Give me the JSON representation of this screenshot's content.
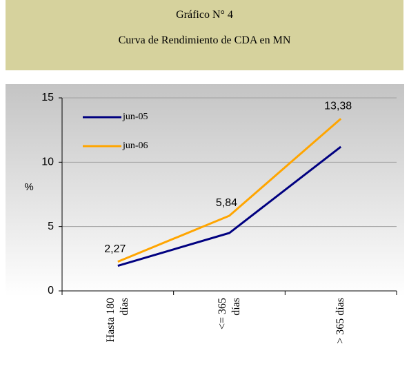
{
  "chart_data": {
    "type": "line",
    "title": "Gráfico N° 4",
    "subtitle": "Curva de Rendimiento de CDA en MN",
    "y_label": "%",
    "categories": [
      "Hasta 180\ndías",
      "<= 365\ndías",
      "> 365 días"
    ],
    "series": [
      {
        "name": "jun-05",
        "color": "#000080",
        "values": [
          1.95,
          4.5,
          11.2
        ]
      },
      {
        "name": "jun-06",
        "color": "#ffa500",
        "values": [
          2.27,
          5.84,
          13.38
        ],
        "value_labels": [
          "2,27",
          "5,84",
          "13,38"
        ]
      }
    ],
    "ylim": [
      0,
      15
    ],
    "yticks": [
      0,
      5,
      10,
      15
    ],
    "grid": true
  }
}
